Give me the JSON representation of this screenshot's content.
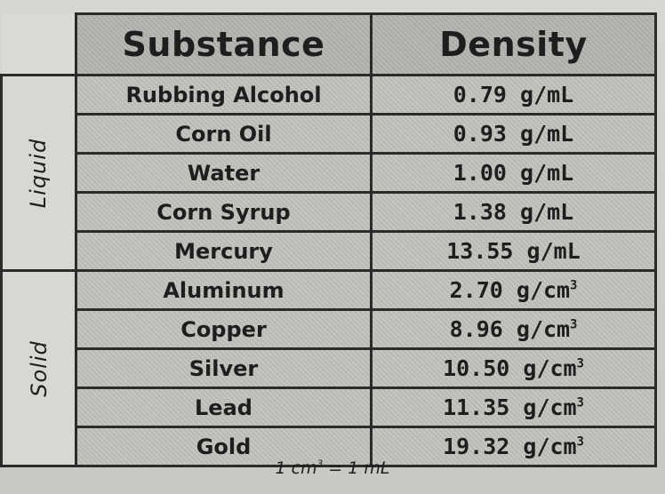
{
  "table": {
    "header": {
      "substance": "Substance",
      "density": "Density"
    },
    "groups": [
      {
        "label": "Liquid",
        "rows": [
          {
            "substance": "Rubbing Alcohol",
            "value": "0.79",
            "unit": "g/mL"
          },
          {
            "substance": "Corn Oil",
            "value": "0.93",
            "unit": "g/mL"
          },
          {
            "substance": "Water",
            "value": "1.00",
            "unit": "g/mL"
          },
          {
            "substance": "Corn Syrup",
            "value": "1.38",
            "unit": "g/mL"
          },
          {
            "substance": "Mercury",
            "value": "13.55",
            "unit": "g/mL"
          }
        ]
      },
      {
        "label": "Solid",
        "rows": [
          {
            "substance": "Aluminum",
            "value": "2.70",
            "unit": "g/cm",
            "unit_sup": "3"
          },
          {
            "substance": "Copper",
            "value": "8.96",
            "unit": "g/cm",
            "unit_sup": "3"
          },
          {
            "substance": "Silver",
            "value": "10.50",
            "unit": "g/cm",
            "unit_sup": "3"
          },
          {
            "substance": "Lead",
            "value": "11.35",
            "unit": "g/cm",
            "unit_sup": "3"
          },
          {
            "substance": "Gold",
            "value": "19.32",
            "unit": "g/cm",
            "unit_sup": "3"
          }
        ]
      }
    ]
  },
  "footer": {
    "left": "1 cm",
    "sup": "3",
    "right": " = 1 mL"
  }
}
